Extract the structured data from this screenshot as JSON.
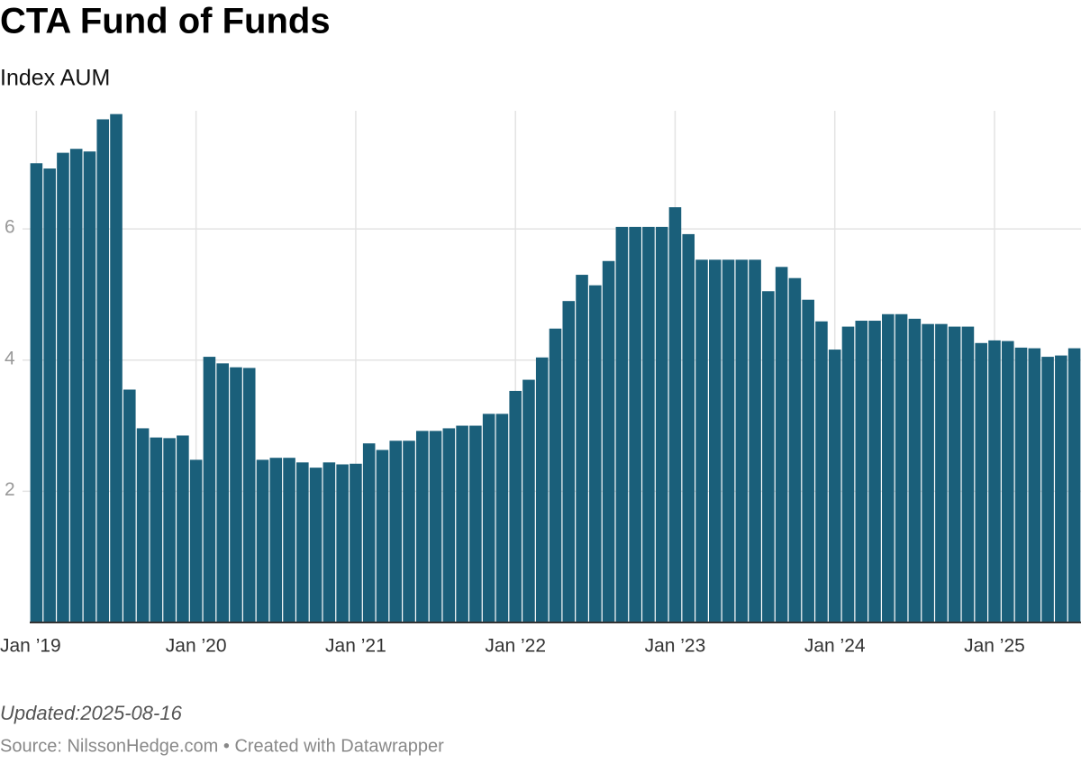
{
  "chart_data": {
    "type": "bar",
    "title": "CTA Fund of Funds",
    "subtitle": "Index AUM",
    "categories": [
      "Jan ’19",
      null,
      null,
      null,
      null,
      null,
      null,
      null,
      null,
      null,
      null,
      null,
      "Jan ’20",
      null,
      null,
      null,
      null,
      null,
      null,
      null,
      null,
      null,
      null,
      null,
      "Jan ’21",
      null,
      null,
      null,
      null,
      null,
      null,
      null,
      null,
      null,
      null,
      null,
      "Jan ’22",
      null,
      null,
      null,
      null,
      null,
      null,
      null,
      null,
      null,
      null,
      null,
      "Jan ’23",
      null,
      null,
      null,
      null,
      null,
      null,
      null,
      null,
      null,
      null,
      null,
      "Jan ’24",
      null,
      null,
      null,
      null,
      null,
      null,
      null,
      null,
      null,
      null,
      null,
      "Jan ’25",
      null,
      null,
      null,
      null,
      null,
      null
    ],
    "values": [
      7.0,
      6.92,
      7.16,
      7.22,
      7.18,
      7.67,
      7.75,
      3.55,
      2.96,
      2.82,
      2.81,
      2.85,
      2.48,
      4.05,
      3.95,
      3.89,
      3.88,
      2.48,
      2.51,
      2.51,
      2.44,
      2.36,
      2.44,
      2.41,
      2.42,
      2.73,
      2.63,
      2.77,
      2.77,
      2.92,
      2.92,
      2.96,
      3.0,
      3.0,
      3.18,
      3.18,
      3.53,
      3.7,
      4.04,
      4.48,
      4.9,
      5.3,
      5.14,
      5.51,
      6.03,
      6.03,
      6.03,
      6.03,
      6.33,
      5.92,
      5.53,
      5.53,
      5.53,
      5.53,
      5.53,
      5.05,
      5.42,
      5.25,
      4.92,
      4.59,
      4.16,
      4.51,
      4.6,
      4.6,
      4.7,
      4.7,
      4.63,
      4.55,
      4.55,
      4.51,
      4.51,
      4.26,
      4.3,
      4.29,
      4.19,
      4.18,
      4.05,
      4.07,
      4.18
    ],
    "color": "#1a5f7a",
    "ylim": [
      0,
      7.8
    ],
    "yticks": [
      2,
      4,
      6
    ],
    "grid": true,
    "notes": [
      "Updated:2025-08-16",
      "Source: NilssonHedge.com • Created with Datawrapper"
    ]
  }
}
